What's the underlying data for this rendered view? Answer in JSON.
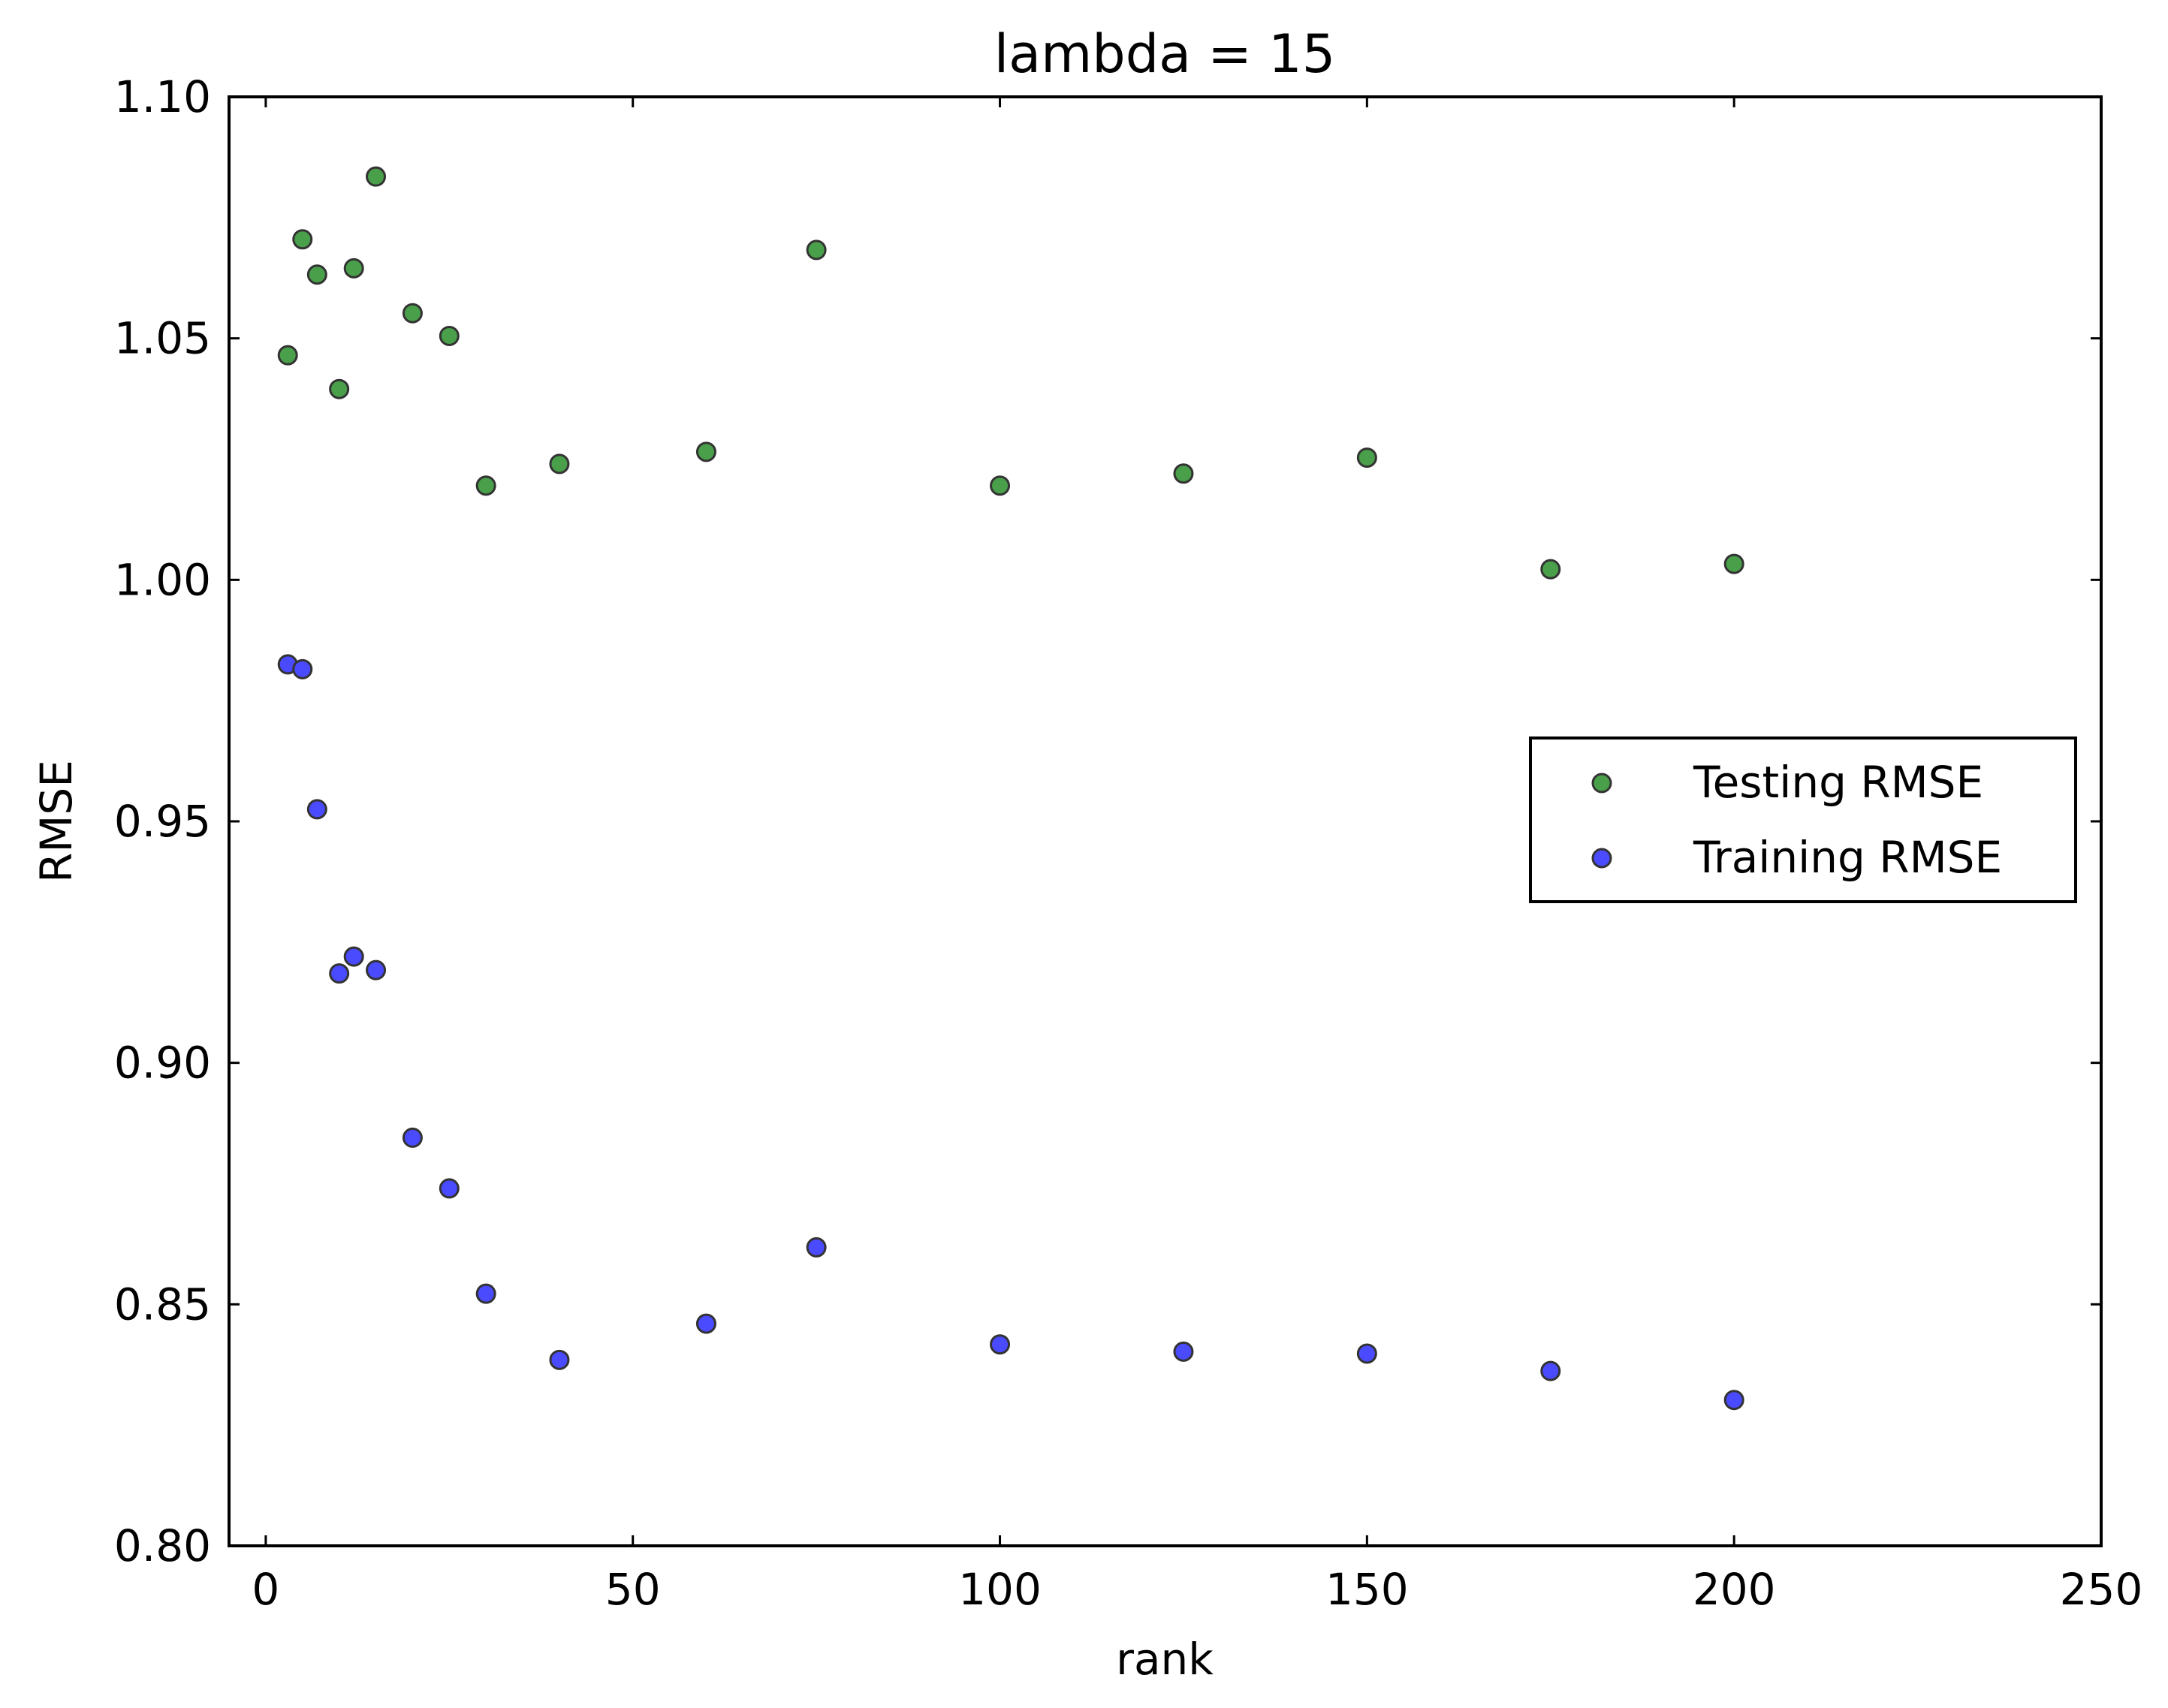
{
  "chart_data": {
    "type": "scatter",
    "title": "lambda = 15",
    "xlabel": "rank",
    "ylabel": "RMSE",
    "xlim": [
      -5,
      250
    ],
    "ylim": [
      0.8,
      1.1
    ],
    "xticks": [
      0,
      50,
      100,
      150,
      200,
      250
    ],
    "xtick_labels": [
      "0",
      "50",
      "100",
      "150",
      "200",
      "250"
    ],
    "yticks": [
      0.8,
      0.85,
      0.9,
      0.95,
      1.0,
      1.05,
      1.1
    ],
    "ytick_labels": [
      "0.80",
      "0.85",
      "0.90",
      "0.95",
      "1.00",
      "1.05",
      "1.10"
    ],
    "grid": false,
    "legend_position": "center-right",
    "series": [
      {
        "name": "Testing RMSE",
        "color": "#4aa04a",
        "points": [
          {
            "x": 3,
            "y": 1.0465
          },
          {
            "x": 5,
            "y": 1.0705
          },
          {
            "x": 7,
            "y": 1.0632
          },
          {
            "x": 10,
            "y": 1.0395
          },
          {
            "x": 12,
            "y": 1.0645
          },
          {
            "x": 15,
            "y": 1.0835
          },
          {
            "x": 20,
            "y": 1.0552
          },
          {
            "x": 25,
            "y": 1.0505
          },
          {
            "x": 30,
            "y": 1.0195
          },
          {
            "x": 40,
            "y": 1.024
          },
          {
            "x": 60,
            "y": 1.0265
          },
          {
            "x": 75,
            "y": 1.0683
          },
          {
            "x": 100,
            "y": 1.0195
          },
          {
            "x": 125,
            "y": 1.022
          },
          {
            "x": 150,
            "y": 1.0253
          },
          {
            "x": 175,
            "y": 1.0022
          },
          {
            "x": 200,
            "y": 1.0033
          }
        ]
      },
      {
        "name": "Training RMSE",
        "color": "#4a4aff",
        "points": [
          {
            "x": 3,
            "y": 0.9825
          },
          {
            "x": 5,
            "y": 0.9815
          },
          {
            "x": 7,
            "y": 0.9525
          },
          {
            "x": 10,
            "y": 0.9185
          },
          {
            "x": 12,
            "y": 0.922
          },
          {
            "x": 15,
            "y": 0.9192
          },
          {
            "x": 20,
            "y": 0.8845
          },
          {
            "x": 25,
            "y": 0.874
          },
          {
            "x": 30,
            "y": 0.8522
          },
          {
            "x": 40,
            "y": 0.8385
          },
          {
            "x": 60,
            "y": 0.846
          },
          {
            "x": 75,
            "y": 0.8618
          },
          {
            "x": 100,
            "y": 0.8417
          },
          {
            "x": 125,
            "y": 0.8402
          },
          {
            "x": 150,
            "y": 0.8398
          },
          {
            "x": 175,
            "y": 0.8362
          },
          {
            "x": 200,
            "y": 0.8302
          }
        ]
      }
    ]
  }
}
